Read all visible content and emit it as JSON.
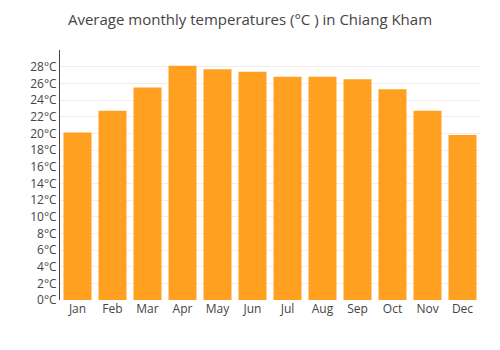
{
  "chart_data": {
    "type": "bar",
    "title": "Average monthly temperatures (°C ) in Chiang Kham",
    "categories": [
      "Jan",
      "Feb",
      "Mar",
      "Apr",
      "May",
      "Jun",
      "Jul",
      "Aug",
      "Sep",
      "Oct",
      "Nov",
      "Dec"
    ],
    "values": [
      20.1,
      22.7,
      25.5,
      28.1,
      27.7,
      27.4,
      26.8,
      26.8,
      26.5,
      25.3,
      22.7,
      19.8
    ],
    "color": "#FFA020",
    "ylim": [
      0,
      30
    ],
    "yticks": [
      {
        "value": 0,
        "label": "0°C"
      },
      {
        "value": 2,
        "label": "2°C"
      },
      {
        "value": 4,
        "label": "4°C"
      },
      {
        "value": 6,
        "label": "6°C"
      },
      {
        "value": 8,
        "label": "8°C"
      },
      {
        "value": 10,
        "label": "10°C"
      },
      {
        "value": 12,
        "label": "12°C"
      },
      {
        "value": 14,
        "label": "14°C"
      },
      {
        "value": 16,
        "label": "16°C"
      },
      {
        "value": 18,
        "label": "18°C"
      },
      {
        "value": 20,
        "label": "20°C"
      },
      {
        "value": 22,
        "label": "22°C"
      },
      {
        "value": 24,
        "label": "24°C"
      },
      {
        "value": 26,
        "label": "26°C"
      },
      {
        "value": 28,
        "label": "28°C"
      }
    ],
    "grid": true
  }
}
